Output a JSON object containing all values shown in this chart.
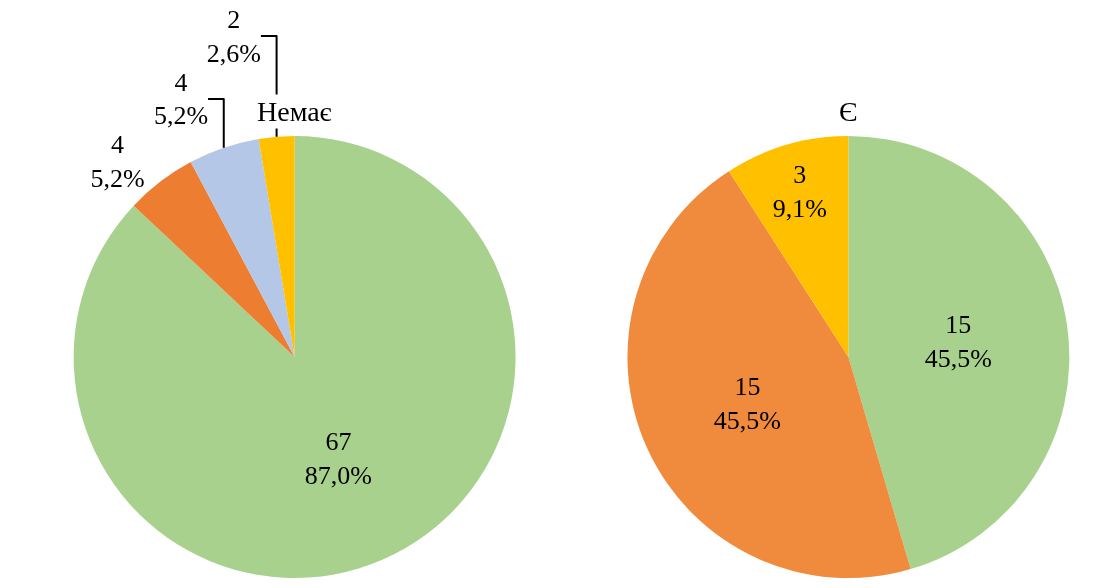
{
  "chart_data": [
    {
      "type": "pie",
      "title": "Немає",
      "categories": [
        null,
        null,
        null,
        null
      ],
      "values": [
        67,
        4,
        4,
        2
      ],
      "colors": [
        "#a9d18e",
        "#ed7d31",
        "#b4c7e7",
        "#ffc000"
      ],
      "value_labels": [
        "67\n87,0%",
        "4\n5,2%",
        "4\n5,2%",
        "2\n2,6%"
      ],
      "legend": false
    },
    {
      "type": "pie",
      "title": "Є",
      "categories": [
        null,
        null,
        null
      ],
      "values": [
        15,
        15,
        3
      ],
      "colors": [
        "#a9d18e",
        "#f08a3c",
        "#ffc000"
      ],
      "value_labels": [
        "15\n45,5%",
        "15\n45,5%",
        "3\n9,1%"
      ],
      "legend": false
    }
  ]
}
